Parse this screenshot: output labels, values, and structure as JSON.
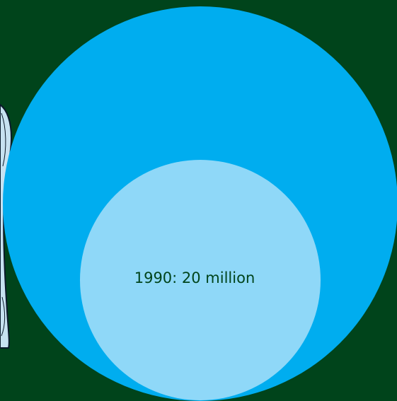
{
  "colors": {
    "background": "#00441b",
    "outer_circle": "#00adef",
    "inner_circle": "#8fd8f8",
    "label_text": "#00441b",
    "figure_fill": "#c7e2f1",
    "figure_stroke": "#0a1a2a"
  },
  "chart_data": {
    "type": "bubble",
    "title": "",
    "series": [
      {
        "label": "",
        "value": null
      },
      {
        "label": "1990: 20 million",
        "value": 20
      }
    ],
    "units": "million"
  }
}
